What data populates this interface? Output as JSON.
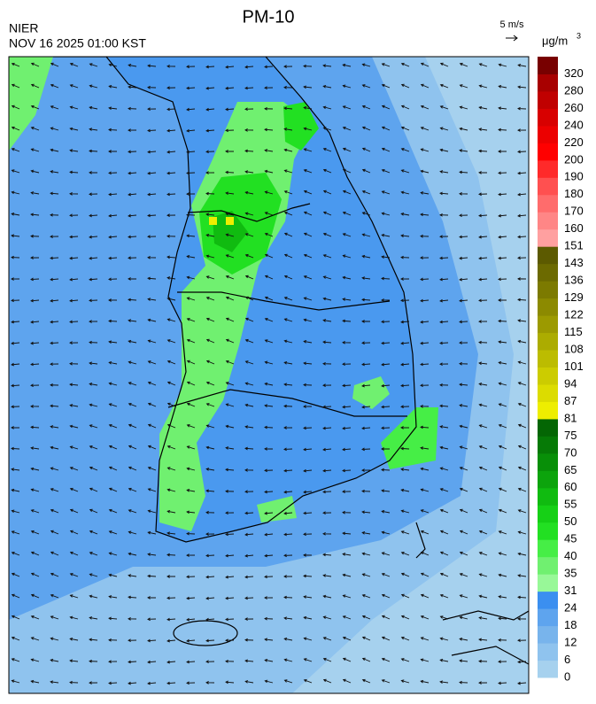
{
  "header": {
    "title": "PM-10",
    "agency": "NIER",
    "timestamp": "NOV 16 2025 01:00 KST"
  },
  "wind_scale": {
    "label": "5 m/s"
  },
  "colorbar": {
    "unit": "μg/m",
    "unit_exponent": "3",
    "labels": [
      0,
      6,
      12,
      18,
      24,
      31,
      35,
      40,
      45,
      50,
      55,
      60,
      65,
      70,
      75,
      81,
      87,
      94,
      101,
      108,
      115,
      122,
      129,
      136,
      143,
      151,
      160,
      170,
      180,
      190,
      200,
      220,
      240,
      260,
      280,
      320
    ],
    "colors": [
      "#a6d1ee",
      "#8fc3ee",
      "#78b4ec",
      "#5ea4ee",
      "#3b8ff0",
      "#98f898",
      "#70f070",
      "#46ee46",
      "#22e022",
      "#16d016",
      "#10bb10",
      "#0ca40c",
      "#088f08",
      "#067a06",
      "#046604",
      "#eeee00",
      "#dcdc00",
      "#cccc00",
      "#bcbc00",
      "#acac00",
      "#9c9a00",
      "#8c8a00",
      "#7c7a00",
      "#6c6a00",
      "#5c5a00",
      "#ffa0a0",
      "#ff8686",
      "#ff6c6c",
      "#ff5050",
      "#ff2a2a",
      "#ff0000",
      "#ec0000",
      "#d80000",
      "#c00000",
      "#a80000",
      "#780000"
    ]
  }
}
